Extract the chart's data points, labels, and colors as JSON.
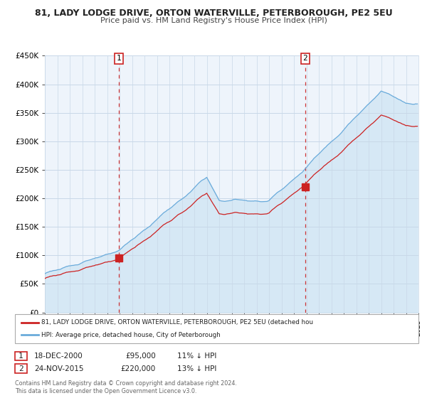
{
  "title_line1": "81, LADY LODGE DRIVE, ORTON WATERVILLE, PETERBOROUGH, PE2 5EU",
  "title_line2": "Price paid vs. HM Land Registry's House Price Index (HPI)",
  "legend_label1": "81, LADY LODGE DRIVE, ORTON WATERVILLE, PETERBOROUGH, PE2 5EU (detached hou",
  "legend_label2": "HPI: Average price, detached house, City of Peterborough",
  "annotation1": {
    "label": "1",
    "date": "18-DEC-2000",
    "price": "£95,000",
    "hpi": "11% ↓ HPI",
    "x_year": 2000.96,
    "y_val": 95000
  },
  "annotation2": {
    "label": "2",
    "date": "24-NOV-2015",
    "price": "£220,000",
    "hpi": "13% ↓ HPI",
    "x_year": 2015.9,
    "y_val": 220000
  },
  "footnote": "Contains HM Land Registry data © Crown copyright and database right 2024.\nThis data is licensed under the Open Government Licence v3.0.",
  "hpi_color": "#6aabdb",
  "hpi_fill_color": "#d6e8f5",
  "price_color": "#cc2222",
  "background_color": "#ffffff",
  "plot_bg_color": "#eef4fb",
  "grid_color": "#c8d8e8",
  "ylim": [
    0,
    450000
  ],
  "xlim_start": 1995,
  "xlim_end": 2025,
  "yticks": [
    0,
    50000,
    100000,
    150000,
    200000,
    250000,
    300000,
    350000,
    400000,
    450000
  ],
  "ytick_labels": [
    "£0",
    "£50K",
    "£100K",
    "£150K",
    "£200K",
    "£250K",
    "£300K",
    "£350K",
    "£400K",
    "£450K"
  ]
}
